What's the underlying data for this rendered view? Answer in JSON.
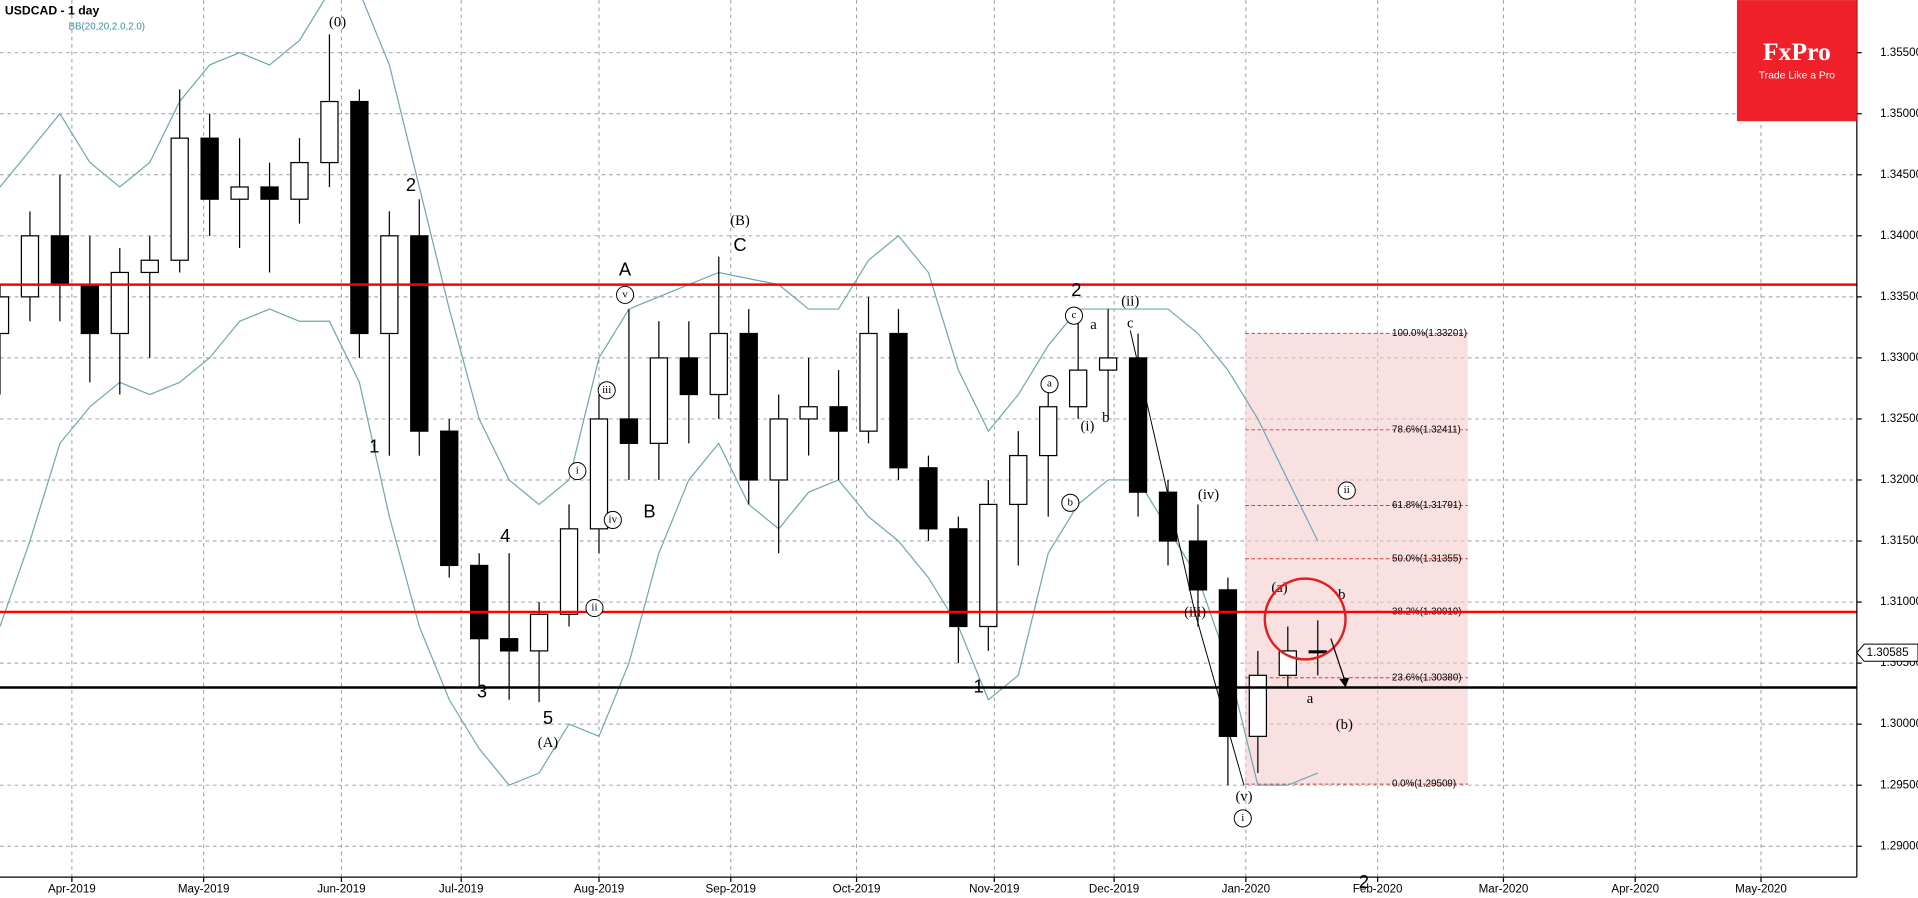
{
  "chart_data": {
    "type": "candlestick",
    "title": "USDCAD - 1 day",
    "subtitle": "BB(20,20,2.0,2.0)",
    "brand": {
      "name": "FxPro",
      "tagline": "Trade Like a Pro",
      "color": "#f0202a"
    },
    "xlim": [
      -12,
      298
    ],
    "ylim": [
      1.28747,
      1.35931
    ],
    "xticks": [
      {
        "value": 0,
        "label": "Apr-2019"
      },
      {
        "value": 22,
        "label": "May-2019"
      },
      {
        "value": 45,
        "label": "Jun-2019"
      },
      {
        "value": 65,
        "label": "Jul-2019"
      },
      {
        "value": 88,
        "label": "Aug-2019"
      },
      {
        "value": 110,
        "label": "Sep-2019"
      },
      {
        "value": 131,
        "label": "Oct-2019"
      },
      {
        "value": 154,
        "label": "Nov-2019"
      },
      {
        "value": 174,
        "label": "Dec-2019"
      },
      {
        "value": 196,
        "label": "Jan-2020"
      },
      {
        "value": 218,
        "label": "Feb-2020"
      },
      {
        "value": 239,
        "label": "Mar-2020"
      },
      {
        "value": 261,
        "label": "Apr-2020"
      },
      {
        "value": 282,
        "label": "May-2020"
      }
    ],
    "yticks": [
      {
        "value": 1.29,
        "label": "1.29000"
      },
      {
        "value": 1.295,
        "label": "1.29500"
      },
      {
        "value": 1.3,
        "label": "1.30000"
      },
      {
        "value": 1.305,
        "label": "1.30500"
      },
      {
        "value": 1.31,
        "label": "1.31000"
      },
      {
        "value": 1.315,
        "label": "1.31500"
      },
      {
        "value": 1.32,
        "label": "1.32000"
      },
      {
        "value": 1.325,
        "label": "1.32500"
      },
      {
        "value": 1.33,
        "label": "1.33000"
      },
      {
        "value": 1.335,
        "label": "1.33500"
      },
      {
        "value": 1.34,
        "label": "1.34000"
      },
      {
        "value": 1.345,
        "label": "1.34500"
      },
      {
        "value": 1.35,
        "label": "1.35000"
      },
      {
        "value": 1.355,
        "label": "1.35500"
      }
    ],
    "grid": true,
    "up_color": "#ffffff",
    "down_color": "#000000",
    "x": [
      -12,
      -7,
      -2,
      3,
      8,
      13,
      18,
      23,
      28,
      33,
      38,
      43,
      48,
      53,
      58,
      63,
      68,
      73,
      78,
      83,
      88,
      93,
      98,
      103,
      108,
      113,
      118,
      123,
      128,
      133,
      138,
      143,
      148,
      153,
      158,
      163,
      168,
      173,
      178,
      183,
      188,
      193,
      198,
      203,
      208
    ],
    "open": [
      1.332,
      1.335,
      1.34,
      1.336,
      1.332,
      1.337,
      1.338,
      1.348,
      1.343,
      1.344,
      1.343,
      1.346,
      1.351,
      1.332,
      1.34,
      1.324,
      1.313,
      1.307,
      1.306,
      1.309,
      1.316,
      1.325,
      1.323,
      1.33,
      1.327,
      1.332,
      1.32,
      1.325,
      1.326,
      1.324,
      1.332,
      1.321,
      1.316,
      1.308,
      1.318,
      1.322,
      1.326,
      1.329,
      1.33,
      1.319,
      1.315,
      1.311,
      1.299,
      1.304,
      1.306
    ],
    "high": [
      1.336,
      1.342,
      1.345,
      1.34,
      1.339,
      1.34,
      1.352,
      1.35,
      1.348,
      1.346,
      1.348,
      1.3565,
      1.352,
      1.342,
      1.343,
      1.325,
      1.314,
      1.314,
      1.31,
      1.318,
      1.327,
      1.334,
      1.333,
      1.333,
      1.3383,
      1.334,
      1.327,
      1.33,
      1.329,
      1.335,
      1.334,
      1.322,
      1.317,
      1.32,
      1.324,
      1.328,
      1.334,
      1.334,
      1.332,
      1.32,
      1.318,
      1.312,
      1.306,
      1.308,
      1.3085
    ],
    "low": [
      1.327,
      1.333,
      1.333,
      1.328,
      1.327,
      1.33,
      1.337,
      1.34,
      1.339,
      1.337,
      1.341,
      1.344,
      1.33,
      1.322,
      1.322,
      1.312,
      1.303,
      1.302,
      1.3018,
      1.308,
      1.314,
      1.32,
      1.32,
      1.323,
      1.325,
      1.318,
      1.314,
      1.322,
      1.32,
      1.323,
      1.32,
      1.315,
      1.305,
      1.306,
      1.313,
      1.317,
      1.325,
      1.325,
      1.317,
      1.313,
      1.308,
      1.295,
      1.296,
      1.303,
      1.304
    ],
    "close": [
      1.335,
      1.34,
      1.336,
      1.332,
      1.337,
      1.338,
      1.348,
      1.343,
      1.344,
      1.343,
      1.346,
      1.351,
      1.332,
      1.34,
      1.324,
      1.313,
      1.307,
      1.306,
      1.309,
      1.316,
      1.325,
      1.323,
      1.33,
      1.327,
      1.332,
      1.32,
      1.325,
      1.326,
      1.324,
      1.332,
      1.321,
      1.316,
      1.308,
      1.318,
      1.322,
      1.326,
      1.329,
      1.33,
      1.319,
      1.315,
      1.311,
      1.299,
      1.304,
      1.306,
      1.30585
    ],
    "bands": [
      {
        "color": "#6fa8b0",
        "values": [
          1.344,
          1.347,
          1.35,
          1.346,
          1.344,
          1.346,
          1.351,
          1.354,
          1.355,
          1.354,
          1.356,
          1.36,
          1.36,
          1.354,
          1.344,
          1.334,
          1.325,
          1.32,
          1.318,
          1.32,
          1.33,
          1.334,
          1.335,
          1.336,
          1.337,
          1.3365,
          1.336,
          1.334,
          1.334,
          1.338,
          1.34,
          1.337,
          1.329,
          1.324,
          1.327,
          1.331,
          1.334,
          1.334,
          1.334,
          1.334,
          1.332,
          1.329,
          1.325,
          1.32,
          1.315
        ]
      },
      {
        "color": "#6fa8b0",
        "values": [
          1.308,
          1.315,
          1.323,
          1.326,
          1.328,
          1.327,
          1.328,
          1.33,
          1.333,
          1.334,
          1.333,
          1.333,
          1.328,
          1.317,
          1.308,
          1.302,
          1.298,
          1.295,
          1.296,
          1.3,
          1.299,
          1.305,
          1.314,
          1.32,
          1.323,
          1.318,
          1.316,
          1.319,
          1.32,
          1.317,
          1.315,
          1.312,
          1.308,
          1.302,
          1.304,
          1.314,
          1.318,
          1.32,
          1.32,
          1.316,
          1.312,
          1.305,
          1.295,
          1.295,
          1.296
        ]
      }
    ],
    "levels": [
      {
        "value": 1.336,
        "color": "#ff0000"
      },
      {
        "value": 1.30919,
        "color": "#ff0000"
      },
      {
        "value": 1.303,
        "color": "#000000"
      }
    ],
    "fibonacci": [
      {
        "value": 1.33201,
        "label": "100.0%(1.33201)"
      },
      {
        "value": 1.32411,
        "label": "78.6%(1.32411)"
      },
      {
        "value": 1.31791,
        "label": "61.8%(1.31791)"
      },
      {
        "value": 1.31355,
        "label": "50.0%(1.31355)"
      },
      {
        "value": 1.30919,
        "label": "38.2%(1.30919)"
      },
      {
        "value": 1.3038,
        "label": "23.6%(1.30380)"
      },
      {
        "value": 1.29509,
        "label": "0.0%(1.29509)"
      }
    ],
    "current_price": 1.30585,
    "annotations": [
      {
        "text": "(0)"
      },
      {
        "text": "2"
      },
      {
        "text": "1"
      },
      {
        "text": "4"
      },
      {
        "text": "3"
      },
      {
        "text": "5"
      },
      {
        "text": "(A)"
      },
      {
        "text": "i",
        "circled": true
      },
      {
        "text": "ii",
        "circled": true
      },
      {
        "text": "iii",
        "circled": true
      },
      {
        "text": "iv",
        "circled": true
      },
      {
        "text": "v",
        "circled": true
      },
      {
        "text": "A"
      },
      {
        "text": "B"
      },
      {
        "text": "(B)"
      },
      {
        "text": "C"
      },
      {
        "text": "1"
      },
      {
        "text": "2"
      },
      {
        "text": "c",
        "circled": true
      },
      {
        "text": "a"
      },
      {
        "text": "a",
        "circled": true
      },
      {
        "text": "(i)"
      },
      {
        "text": "b"
      },
      {
        "text": "b",
        "circled": true
      },
      {
        "text": "(ii)"
      },
      {
        "text": "c"
      },
      {
        "text": "(iv)"
      },
      {
        "text": "(iii)"
      },
      {
        "text": "(a)"
      },
      {
        "text": "b"
      },
      {
        "text": "a"
      },
      {
        "text": "(b)"
      },
      {
        "text": "ii",
        "circled": true
      },
      {
        "text": "(v)"
      },
      {
        "text": "i",
        "circled": true
      },
      {
        "text": "2"
      }
    ]
  }
}
